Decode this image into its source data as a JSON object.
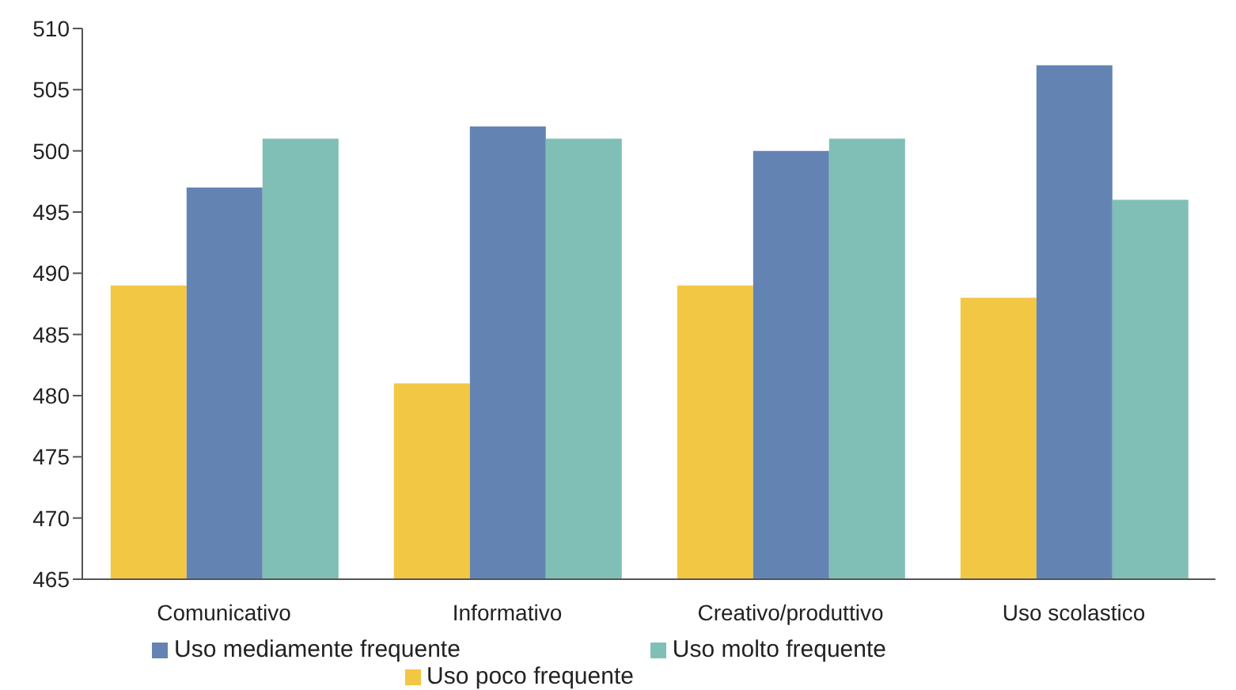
{
  "chart_data": {
    "type": "bar",
    "categories": [
      "Comunicativo",
      "Informativo",
      "Creativo/produttivo",
      "Uso scolastico"
    ],
    "series": [
      {
        "name": "Uso poco frequente",
        "color": "#f2c744",
        "values": [
          489,
          481,
          489,
          488
        ]
      },
      {
        "name": "Uso mediamente frequente",
        "color": "#6384b3",
        "values": [
          497,
          502,
          500,
          507
        ]
      },
      {
        "name": "Uso molto frequente",
        "color": "#80bfb5",
        "values": [
          501,
          501,
          501,
          496
        ]
      }
    ],
    "ylim": [
      465,
      510
    ],
    "yticks": [
      465,
      470,
      475,
      480,
      485,
      490,
      495,
      500,
      505,
      510
    ],
    "grid": false,
    "legend": "bottom"
  }
}
